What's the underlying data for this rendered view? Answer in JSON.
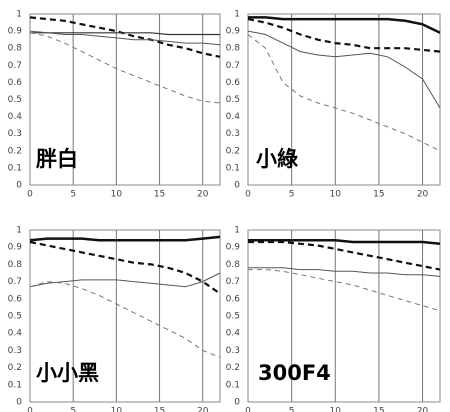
{
  "chart_data": [
    {
      "type": "line",
      "title": "胖白",
      "x": [
        0,
        2,
        4,
        6,
        8,
        10,
        12,
        14,
        16,
        18,
        20,
        22
      ],
      "xlim": [
        0,
        22
      ],
      "xticks": [
        0,
        5,
        10,
        15,
        20
      ],
      "ylim": [
        0,
        1
      ],
      "yticks": [
        0,
        0.1,
        0.2,
        0.3,
        0.4,
        0.5,
        0.6,
        0.7,
        0.8,
        0.9,
        1
      ],
      "grid": "x",
      "series": [
        {
          "color": "#111111",
          "width": 2.2,
          "dash": "6,4",
          "values": [
            0.98,
            0.97,
            0.96,
            0.94,
            0.92,
            0.9,
            0.87,
            0.85,
            0.82,
            0.8,
            0.77,
            0.75
          ]
        },
        {
          "color": "#333333",
          "width": 1.2,
          "dash": "none",
          "values": [
            0.89,
            0.89,
            0.89,
            0.89,
            0.89,
            0.89,
            0.89,
            0.89,
            0.88,
            0.88,
            0.88,
            0.88
          ]
        },
        {
          "color": "#555555",
          "width": 1,
          "dash": "none",
          "values": [
            0.9,
            0.89,
            0.88,
            0.88,
            0.87,
            0.86,
            0.85,
            0.85,
            0.84,
            0.83,
            0.83,
            0.82
          ]
        },
        {
          "color": "#777777",
          "width": 1,
          "dash": "5,4",
          "values": [
            0.89,
            0.87,
            0.83,
            0.78,
            0.73,
            0.68,
            0.64,
            0.6,
            0.56,
            0.52,
            0.49,
            0.48
          ]
        }
      ]
    },
    {
      "type": "line",
      "title": "小綠",
      "x": [
        0,
        2,
        4,
        6,
        8,
        10,
        12,
        14,
        16,
        18,
        20,
        22
      ],
      "xlim": [
        0,
        22
      ],
      "xticks": [
        0,
        5,
        10,
        15,
        20
      ],
      "ylim": [
        0,
        1
      ],
      "yticks": [
        0,
        0.1,
        0.2,
        0.3,
        0.4,
        0.5,
        0.6,
        0.7,
        0.8,
        0.9,
        1
      ],
      "grid": "x",
      "series": [
        {
          "color": "#111111",
          "width": 2.5,
          "dash": "none",
          "values": [
            0.98,
            0.98,
            0.97,
            0.97,
            0.97,
            0.97,
            0.97,
            0.97,
            0.97,
            0.96,
            0.94,
            0.89
          ]
        },
        {
          "color": "#111111",
          "width": 2.2,
          "dash": "6,4",
          "values": [
            0.97,
            0.95,
            0.92,
            0.88,
            0.85,
            0.83,
            0.82,
            0.8,
            0.8,
            0.8,
            0.79,
            0.78
          ]
        },
        {
          "color": "#555555",
          "width": 1,
          "dash": "none",
          "values": [
            0.9,
            0.88,
            0.83,
            0.78,
            0.76,
            0.75,
            0.76,
            0.77,
            0.75,
            0.69,
            0.62,
            0.45
          ]
        },
        {
          "color": "#777777",
          "width": 1,
          "dash": "5,4",
          "values": [
            0.88,
            0.8,
            0.6,
            0.52,
            0.48,
            0.45,
            0.42,
            0.38,
            0.34,
            0.3,
            0.25,
            0.2
          ]
        }
      ]
    },
    {
      "type": "line",
      "title": "小小黑",
      "x": [
        0,
        2,
        4,
        6,
        8,
        10,
        12,
        14,
        16,
        18,
        20,
        22
      ],
      "xlim": [
        0,
        22
      ],
      "xticks": [
        0,
        5,
        10,
        15,
        20
      ],
      "ylim": [
        0,
        1
      ],
      "yticks": [
        0,
        0.1,
        0.2,
        0.3,
        0.4,
        0.5,
        0.6,
        0.7,
        0.8,
        0.9,
        1
      ],
      "grid": "x",
      "series": [
        {
          "color": "#111111",
          "width": 2.5,
          "dash": "none",
          "values": [
            0.94,
            0.95,
            0.95,
            0.95,
            0.94,
            0.94,
            0.94,
            0.94,
            0.94,
            0.94,
            0.95,
            0.96
          ]
        },
        {
          "color": "#111111",
          "width": 2.2,
          "dash": "6,4",
          "values": [
            0.93,
            0.91,
            0.89,
            0.87,
            0.85,
            0.83,
            0.81,
            0.8,
            0.78,
            0.75,
            0.7,
            0.63
          ]
        },
        {
          "color": "#555555",
          "width": 1,
          "dash": "none",
          "values": [
            0.67,
            0.69,
            0.7,
            0.71,
            0.71,
            0.71,
            0.7,
            0.69,
            0.68,
            0.67,
            0.7,
            0.75
          ]
        },
        {
          "color": "#777777",
          "width": 1,
          "dash": "5,4",
          "values": [
            0.67,
            0.7,
            0.69,
            0.66,
            0.62,
            0.57,
            0.52,
            0.47,
            0.42,
            0.37,
            0.3,
            0.26
          ]
        }
      ]
    },
    {
      "type": "line",
      "title": "300F4",
      "x": [
        0,
        2,
        4,
        6,
        8,
        10,
        12,
        14,
        16,
        18,
        20,
        22
      ],
      "xlim": [
        0,
        22
      ],
      "xticks": [
        0,
        5,
        10,
        15,
        20
      ],
      "ylim": [
        0,
        1
      ],
      "yticks": [
        0,
        0.1,
        0.2,
        0.3,
        0.4,
        0.5,
        0.6,
        0.7,
        0.8,
        0.9,
        1
      ],
      "grid": "x",
      "series": [
        {
          "color": "#111111",
          "width": 2.5,
          "dash": "none",
          "values": [
            0.94,
            0.94,
            0.94,
            0.94,
            0.94,
            0.94,
            0.93,
            0.93,
            0.93,
            0.93,
            0.93,
            0.92
          ]
        },
        {
          "color": "#111111",
          "width": 2.2,
          "dash": "6,4",
          "values": [
            0.93,
            0.93,
            0.93,
            0.92,
            0.91,
            0.89,
            0.87,
            0.85,
            0.83,
            0.81,
            0.79,
            0.77
          ]
        },
        {
          "color": "#555555",
          "width": 1,
          "dash": "none",
          "values": [
            0.78,
            0.78,
            0.78,
            0.77,
            0.77,
            0.76,
            0.76,
            0.75,
            0.75,
            0.74,
            0.74,
            0.73
          ]
        },
        {
          "color": "#777777",
          "width": 1,
          "dash": "5,4",
          "values": [
            0.77,
            0.77,
            0.76,
            0.74,
            0.72,
            0.7,
            0.68,
            0.65,
            0.62,
            0.59,
            0.56,
            0.53
          ]
        }
      ]
    }
  ]
}
